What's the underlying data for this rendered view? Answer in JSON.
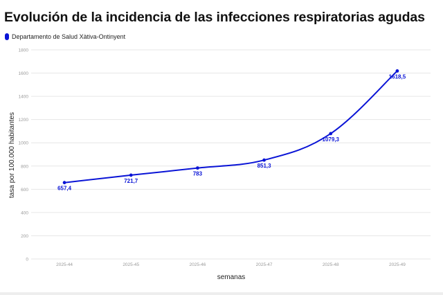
{
  "colors": {
    "series": "#0a14d6",
    "grid": "#e6e6e6",
    "tick_text": "#999999",
    "axis_title": "#222222"
  },
  "chart_data": {
    "type": "line",
    "title": "Evolución de la incidencia de las infecciones respiratorias agudas",
    "xlabel": "semanas",
    "ylabel": "tasa por 100.000 habitantes",
    "categories": [
      "2025-44",
      "2025-45",
      "2025-46",
      "2025-47",
      "2025-48",
      "2025-49"
    ],
    "series": [
      {
        "name": "Departamento de Salud Xàtiva-Ontinyent",
        "values": [
          657.4,
          721.7,
          783,
          851.3,
          1079.3,
          1618.5
        ],
        "labels": [
          "657,4",
          "721,7",
          "783",
          "851,3",
          "1079,3",
          "1618,5"
        ]
      }
    ],
    "ylim": [
      0,
      1800
    ],
    "yticks": [
      0,
      200,
      400,
      600,
      800,
      1000,
      1200,
      1400,
      1600,
      1800
    ],
    "grid": true,
    "legend": "top-left",
    "curve": "smooth"
  }
}
